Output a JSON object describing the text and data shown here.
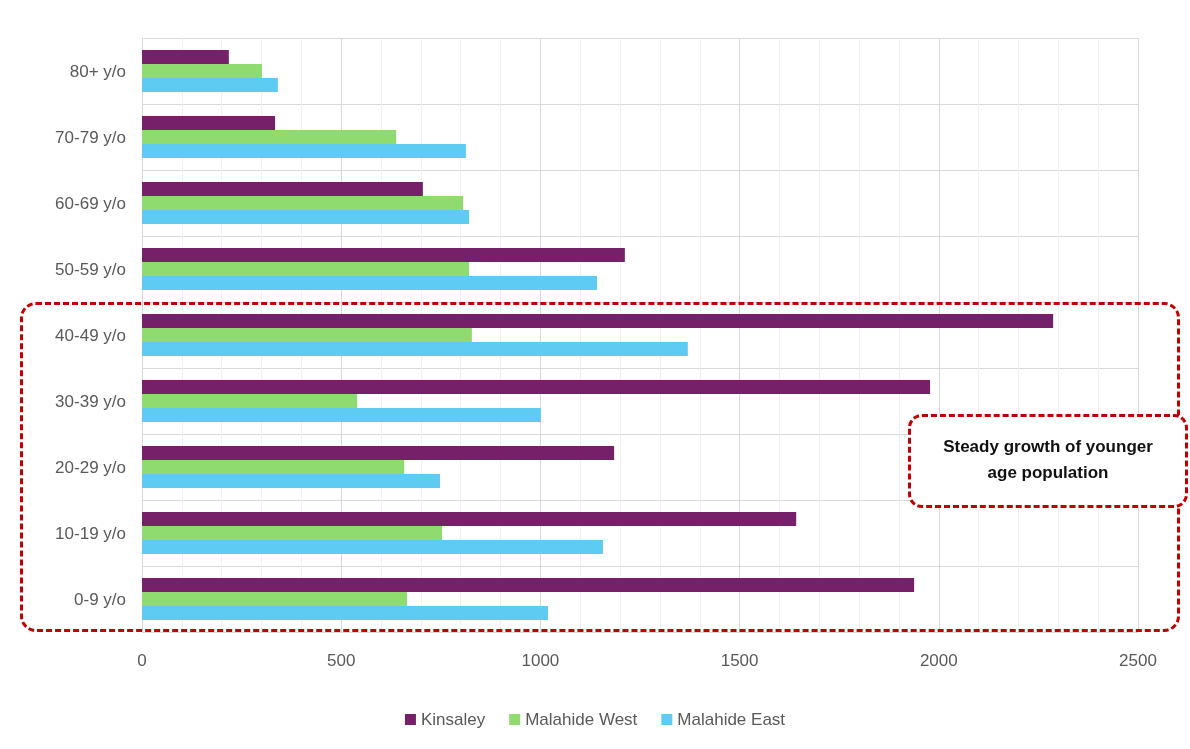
{
  "chart_data": {
    "type": "bar",
    "orientation": "horizontal",
    "categories": [
      "80+ y/o",
      "70-79 y/o",
      "60-69 y/o",
      "50-59 y/o",
      "40-49 y/o",
      "30-39 y/o",
      "20-29 y/o",
      "10-19 y/o",
      "0-9 y/o"
    ],
    "series": [
      {
        "name": "Kinsaley",
        "color": "#76206a",
        "values": [
          218,
          334,
          705,
          1212,
          2287,
          1978,
          1185,
          1642,
          1938
        ]
      },
      {
        "name": "Malahide West",
        "color": "#8fdb70",
        "values": [
          301,
          638,
          806,
          821,
          828,
          540,
          658,
          753,
          665
        ]
      },
      {
        "name": "Malahide East",
        "color": "#5ecbf3",
        "values": [
          341,
          813,
          821,
          1142,
          1370,
          1001,
          748,
          1157,
          1019
        ]
      }
    ],
    "xlim": [
      0,
      2500
    ],
    "xticks": [
      0,
      500,
      1000,
      1500,
      2000,
      2500
    ],
    "grid": true,
    "legend": "bottom",
    "annotations": [
      "Steady growth of younger age population"
    ]
  }
}
